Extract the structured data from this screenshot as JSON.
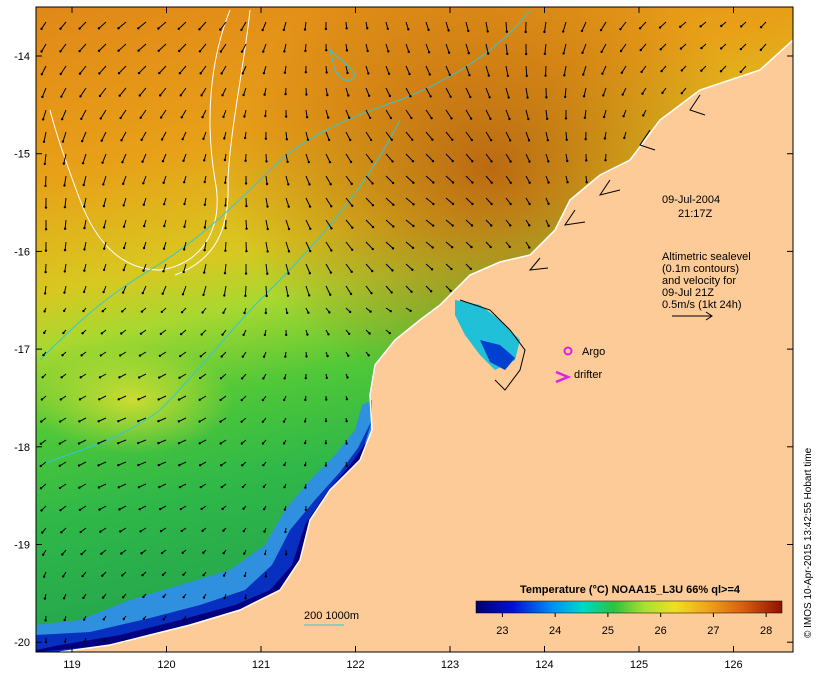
{
  "map": {
    "lon_ticks": [
      "119",
      "120",
      "121",
      "122",
      "123",
      "124",
      "125",
      "126"
    ],
    "lat_ticks": [
      "-14",
      "-15",
      "-16",
      "-17",
      "-18",
      "-19",
      "-20"
    ],
    "date_label": "09-Jul-2004",
    "time_label": "21:17Z",
    "legend_lines": [
      "Altimetric sealevel",
      "(0.1m contours)",
      "and velocity for",
      "09-Jul 21Z",
      "0.5m/s (1kt 24h)"
    ],
    "argo_label": "Argo",
    "drifter_label": "drifter",
    "contour_label": "200  1000m",
    "colorbar": {
      "title": "Temperature (°C) NOAA15_L3U 66% ql>=4",
      "ticks": [
        "23",
        "24",
        "25",
        "26",
        "27",
        "28"
      ],
      "min": 22.5,
      "max": 28.3
    },
    "credit": "© IMOS 10-Apr-2015 13:42:55 Hobart time",
    "colors": {
      "land": "#fccb98",
      "argo": "#e020e0",
      "drifter": "#e020e0",
      "contour": "#30c8d8"
    }
  }
}
